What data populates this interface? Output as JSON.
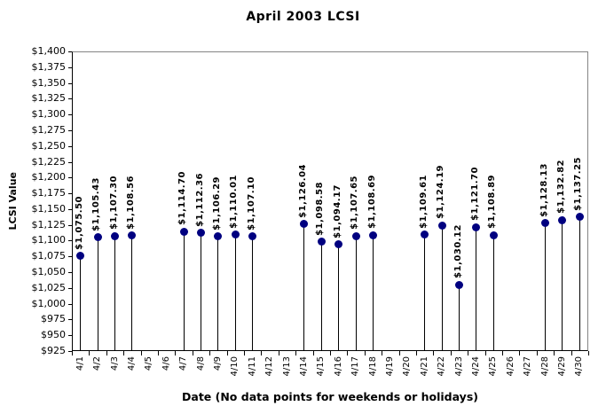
{
  "chart_data": {
    "type": "scatter",
    "style": "lollipop-stem-with-markers",
    "title": "April 2003 LCSI",
    "xlabel": "Date (No data points for weekends or holidays)",
    "ylabel": "LCSI Value",
    "categories": [
      "4/1",
      "4/2",
      "4/3",
      "4/4",
      "4/5",
      "4/6",
      "4/7",
      "4/8",
      "4/9",
      "4/10",
      "4/11",
      "4/12",
      "4/13",
      "4/14",
      "4/15",
      "4/16",
      "4/17",
      "4/18",
      "4/19",
      "4/20",
      "4/21",
      "4/22",
      "4/23",
      "4/24",
      "4/25",
      "4/26",
      "4/27",
      "4/28",
      "4/29",
      "4/30"
    ],
    "values": [
      1075.5,
      1105.43,
      1107.3,
      1108.56,
      null,
      null,
      1114.7,
      1112.36,
      1106.29,
      1110.01,
      1107.1,
      null,
      null,
      1126.04,
      1098.58,
      1094.17,
      1107.65,
      1108.69,
      null,
      null,
      1109.61,
      1124.19,
      1030.12,
      1121.7,
      1108.89,
      null,
      null,
      1128.13,
      1132.82,
      1137.25
    ],
    "point_labels": [
      "$1,075.50",
      "$1,105.43",
      "$1,107.30",
      "$1,108.56",
      null,
      null,
      "$1,114.70",
      "$1,112.36",
      "$1,106.29",
      "$1,110.01",
      "$1,107.10",
      null,
      null,
      "$1,126.04",
      "$1,098.58",
      "$1,094.17",
      "$1,107.65",
      "$1,108.69",
      null,
      null,
      "$1,109.61",
      "$1,124.19",
      "$1,030.12",
      "$1,121.70",
      "$1,108.89",
      null,
      null,
      "$1,128.13",
      "$1,132.82",
      "$1,137.25"
    ],
    "ylim": [
      925,
      1400
    ],
    "ytick_step": 25,
    "ytick_labels": [
      "$1,400",
      "$1,375",
      "$1,350",
      "$1,325",
      "$1,300",
      "$1,275",
      "$1,250",
      "$1,225",
      "$1,200",
      "$1,175",
      "$1,150",
      "$1,125",
      "$1,100",
      "$1,075",
      "$1,050",
      "$1,025",
      "$1,000",
      "$975",
      "$950",
      "$925"
    ],
    "grid": false,
    "legend": false,
    "colors": {
      "marker": "#000080",
      "stem": "#000000",
      "axis": "#000000",
      "plot_border": "#848484",
      "text": "#000000",
      "background": "#ffffff"
    }
  }
}
